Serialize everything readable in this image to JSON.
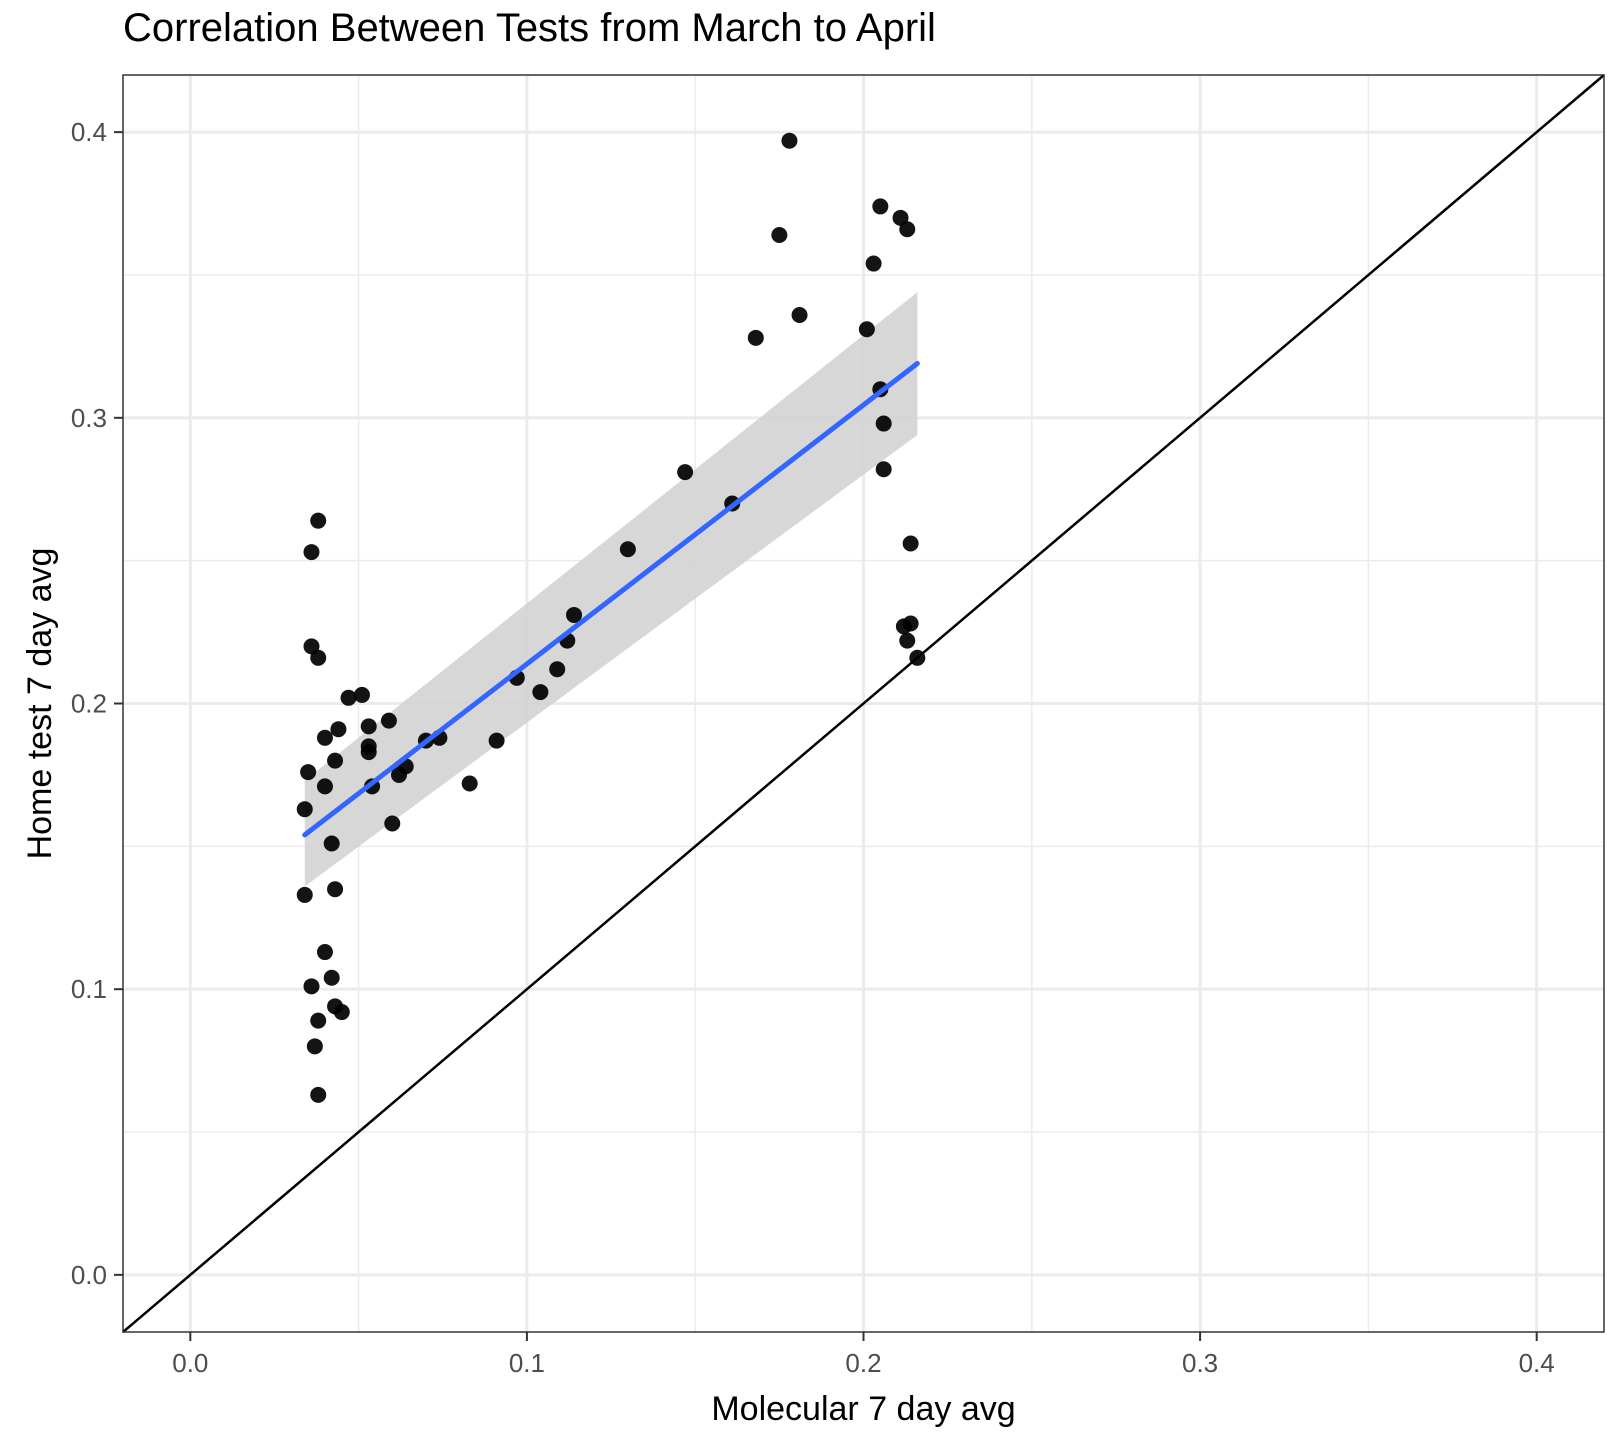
{
  "chart_data": {
    "type": "scatter",
    "title": "Correlation Between Tests from March to April",
    "xlabel": "Molecular 7 day avg",
    "ylabel": "Home test 7 day avg",
    "xlim": [
      -0.02,
      0.42
    ],
    "ylim": [
      -0.02,
      0.42
    ],
    "x_ticks": [
      0.0,
      0.1,
      0.2,
      0.3,
      0.4
    ],
    "y_ticks": [
      0.0,
      0.1,
      0.2,
      0.3,
      0.4
    ],
    "x_tick_labels": [
      "0.0",
      "0.1",
      "0.2",
      "0.3",
      "0.4"
    ],
    "y_tick_labels": [
      "0.0",
      "0.1",
      "0.2",
      "0.3",
      "0.4"
    ],
    "grid": true,
    "points": [
      {
        "x": 0.178,
        "y": 0.397
      },
      {
        "x": 0.205,
        "y": 0.374
      },
      {
        "x": 0.211,
        "y": 0.37
      },
      {
        "x": 0.213,
        "y": 0.366
      },
      {
        "x": 0.175,
        "y": 0.364
      },
      {
        "x": 0.203,
        "y": 0.354
      },
      {
        "x": 0.181,
        "y": 0.336
      },
      {
        "x": 0.201,
        "y": 0.331
      },
      {
        "x": 0.168,
        "y": 0.328
      },
      {
        "x": 0.205,
        "y": 0.31
      },
      {
        "x": 0.206,
        "y": 0.298
      },
      {
        "x": 0.206,
        "y": 0.282
      },
      {
        "x": 0.147,
        "y": 0.281
      },
      {
        "x": 0.161,
        "y": 0.27
      },
      {
        "x": 0.038,
        "y": 0.264
      },
      {
        "x": 0.214,
        "y": 0.256
      },
      {
        "x": 0.13,
        "y": 0.254
      },
      {
        "x": 0.036,
        "y": 0.253
      },
      {
        "x": 0.114,
        "y": 0.231
      },
      {
        "x": 0.214,
        "y": 0.228
      },
      {
        "x": 0.212,
        "y": 0.227
      },
      {
        "x": 0.112,
        "y": 0.222
      },
      {
        "x": 0.213,
        "y": 0.222
      },
      {
        "x": 0.036,
        "y": 0.22
      },
      {
        "x": 0.216,
        "y": 0.216
      },
      {
        "x": 0.038,
        "y": 0.216
      },
      {
        "x": 0.109,
        "y": 0.212
      },
      {
        "x": 0.097,
        "y": 0.209
      },
      {
        "x": 0.104,
        "y": 0.204
      },
      {
        "x": 0.051,
        "y": 0.203
      },
      {
        "x": 0.047,
        "y": 0.202
      },
      {
        "x": 0.059,
        "y": 0.194
      },
      {
        "x": 0.053,
        "y": 0.192
      },
      {
        "x": 0.044,
        "y": 0.191
      },
      {
        "x": 0.04,
        "y": 0.188
      },
      {
        "x": 0.074,
        "y": 0.188
      },
      {
        "x": 0.07,
        "y": 0.187
      },
      {
        "x": 0.091,
        "y": 0.187
      },
      {
        "x": 0.053,
        "y": 0.185
      },
      {
        "x": 0.053,
        "y": 0.183
      },
      {
        "x": 0.043,
        "y": 0.18
      },
      {
        "x": 0.064,
        "y": 0.178
      },
      {
        "x": 0.035,
        "y": 0.176
      },
      {
        "x": 0.062,
        "y": 0.175
      },
      {
        "x": 0.083,
        "y": 0.172
      },
      {
        "x": 0.054,
        "y": 0.171
      },
      {
        "x": 0.04,
        "y": 0.171
      },
      {
        "x": 0.034,
        "y": 0.163
      },
      {
        "x": 0.06,
        "y": 0.158
      },
      {
        "x": 0.042,
        "y": 0.151
      },
      {
        "x": 0.043,
        "y": 0.135
      },
      {
        "x": 0.034,
        "y": 0.133
      },
      {
        "x": 0.04,
        "y": 0.113
      },
      {
        "x": 0.042,
        "y": 0.104
      },
      {
        "x": 0.036,
        "y": 0.101
      },
      {
        "x": 0.043,
        "y": 0.094
      },
      {
        "x": 0.045,
        "y": 0.092
      },
      {
        "x": 0.038,
        "y": 0.089
      },
      {
        "x": 0.037,
        "y": 0.08
      },
      {
        "x": 0.038,
        "y": 0.063
      }
    ],
    "fit_line": {
      "color": "#3366ff",
      "x": [
        0.034,
        0.216
      ],
      "y": [
        0.154,
        0.319
      ],
      "ci_upper": [
        0.173,
        0.344
      ],
      "ci_lower": [
        0.136,
        0.294
      ],
      "band_color": "#d3d3d3"
    },
    "reference_line": {
      "slope": 1,
      "intercept": 0,
      "color": "#000000"
    }
  }
}
